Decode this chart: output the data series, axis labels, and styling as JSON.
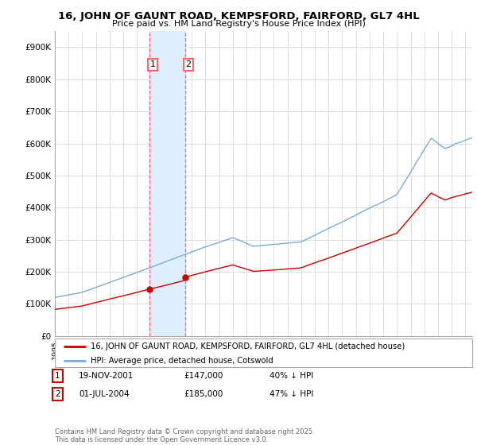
{
  "title1": "16, JOHN OF GAUNT ROAD, KEMPSFORD, FAIRFORD, GL7 4HL",
  "title2": "Price paid vs. HM Land Registry's House Price Index (HPI)",
  "legend_line1": "16, JOHN OF GAUNT ROAD, KEMPSFORD, FAIRFORD, GL7 4HL (detached house)",
  "legend_line2": "HPI: Average price, detached house, Cotswold",
  "sale1_label": "1",
  "sale1_date": "19-NOV-2001",
  "sale1_price": "£147,000",
  "sale1_hpi": "40% ↓ HPI",
  "sale2_label": "2",
  "sale2_date": "01-JUL-2004",
  "sale2_price": "£185,000",
  "sale2_hpi": "47% ↓ HPI",
  "footer": "Contains HM Land Registry data © Crown copyright and database right 2025.\nThis data is licensed under the Open Government Licence v3.0.",
  "price_color": "#cc0000",
  "hpi_color": "#7aadd4",
  "sale1_x_year": 2001.89,
  "sale2_x_year": 2004.5,
  "vline_color": "#ff6666",
  "highlight_color": "#ddeeff",
  "ylim_min": 0,
  "ylim_max": 950000,
  "xlim_min": 1995.0,
  "xlim_max": 2025.5,
  "background_color": "#ffffff",
  "grid_color": "#dddddd",
  "sale1_price_val": 147000,
  "sale2_price_val": 185000
}
